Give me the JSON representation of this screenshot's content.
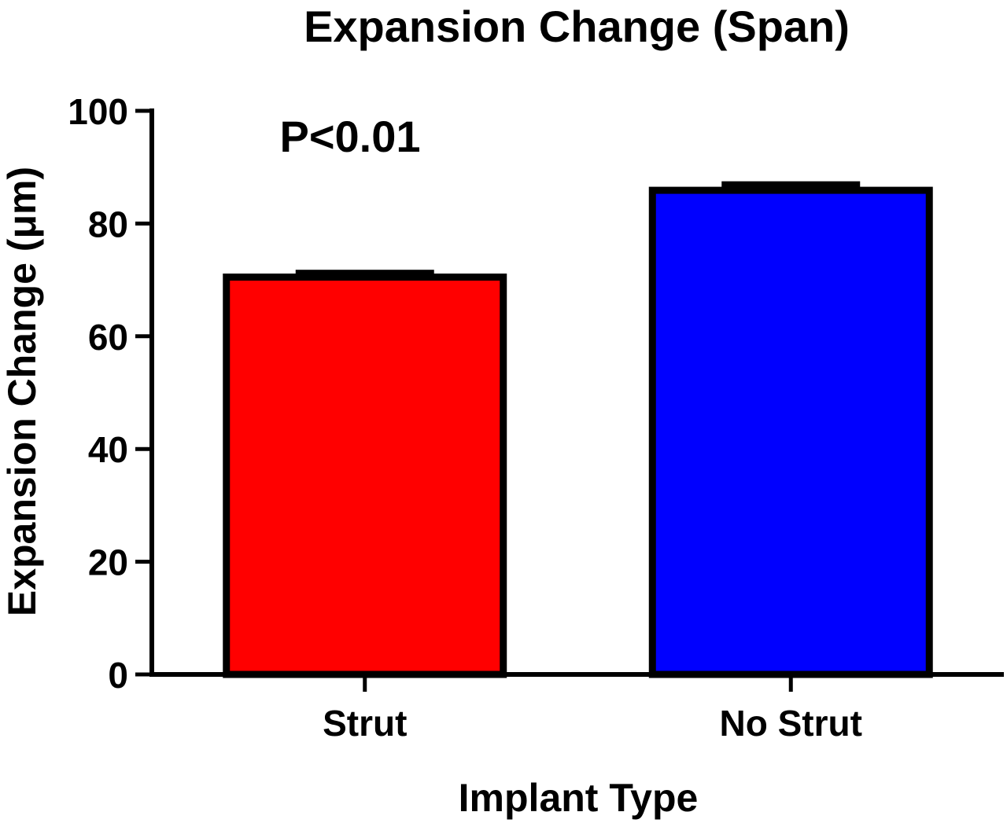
{
  "chart_data": {
    "type": "bar",
    "title": "Expansion Change (Span)",
    "xlabel": "Implant Type",
    "ylabel": "Expansion Change (μm)",
    "categories": [
      "Strut",
      "No Strut"
    ],
    "series": [
      {
        "values": [
          70.5,
          85.9
        ],
        "error": [
          1.3,
          1.6
        ],
        "colors": [
          "#ff0000",
          "#0000ff"
        ]
      }
    ],
    "ylim": [
      0,
      100
    ],
    "yticks": [
      0,
      20,
      40,
      60,
      80,
      100
    ],
    "grid": false,
    "legend": "none",
    "annotations": [
      {
        "text": "P<0.01"
      }
    ]
  }
}
